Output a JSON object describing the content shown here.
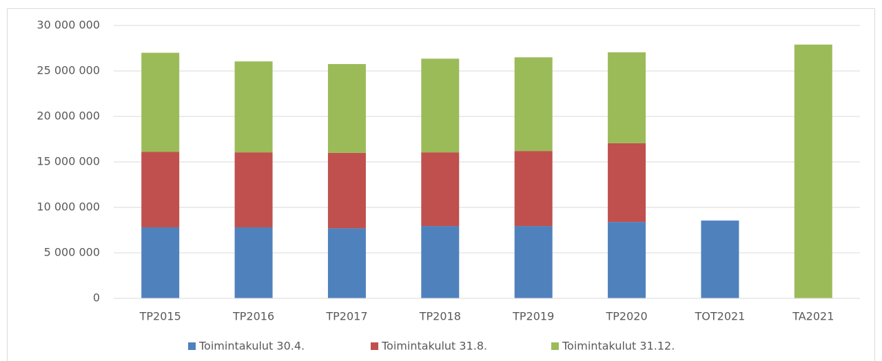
{
  "chart_data": {
    "type": "stacked-bar",
    "categories": [
      "TP2015",
      "TP2016",
      "TP2017",
      "TP2018",
      "TP2019",
      "TP2020",
      "TOT2021",
      "TA2021"
    ],
    "series": [
      {
        "name": "Toimintakulut 30.4.",
        "color": "#4f81bd",
        "values": [
          7800000,
          7800000,
          7700000,
          7950000,
          7950000,
          8400000,
          8550000,
          null
        ]
      },
      {
        "name": "Toimintakulut 31.8.",
        "color": "#c0504d",
        "values": [
          8300000,
          8250000,
          8300000,
          8100000,
          8250000,
          8650000,
          null,
          null
        ]
      },
      {
        "name": "Toimintakulut 31.12.",
        "color": "#9bbb59",
        "values": [
          10900000,
          10000000,
          9760000,
          10300000,
          10300000,
          10000000,
          null,
          27900000
        ]
      }
    ],
    "ylim": [
      0,
      30000000
    ],
    "yticks": [
      0,
      {
        "value": 5000000,
        "label": "5 000 000"
      },
      {
        "value": 10000000,
        "label": "10 000 000"
      },
      {
        "value": 15000000,
        "label": "15 000 000"
      },
      {
        "value": 20000000,
        "label": "20 000 000"
      },
      {
        "value": 25000000,
        "label": "25 000 000"
      },
      {
        "value": 30000000,
        "label": "30 000 000"
      }
    ],
    "grid": true,
    "legend": "bottom"
  }
}
